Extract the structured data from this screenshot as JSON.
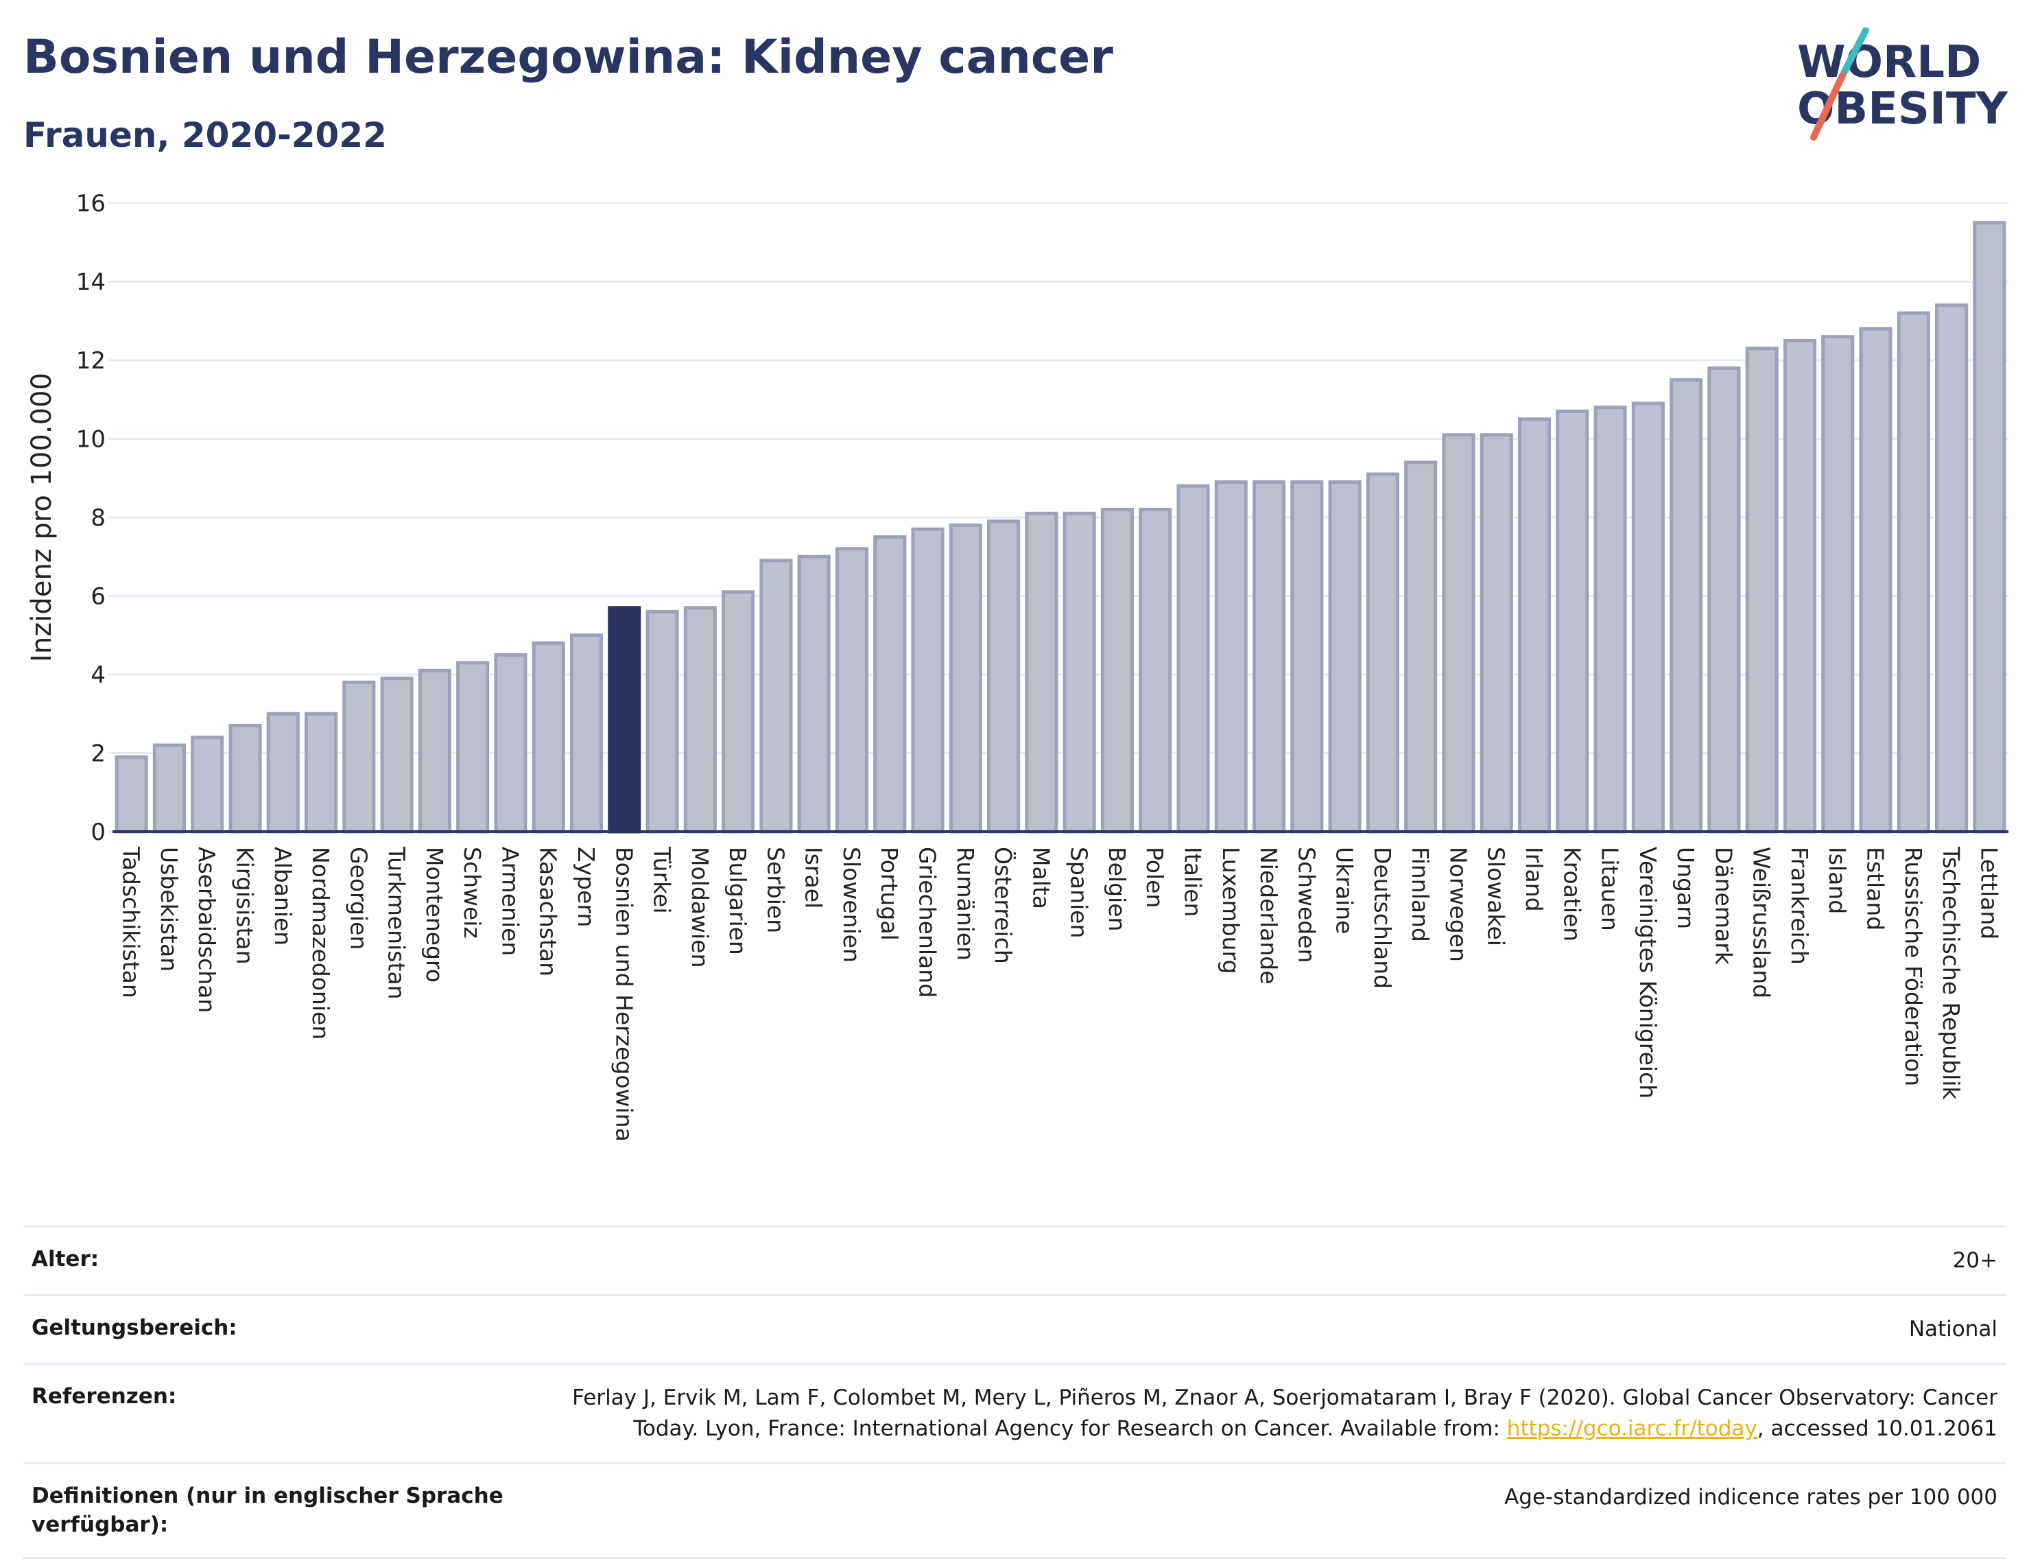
{
  "header": {
    "title": "Bosnien und Herzegowina: Kidney cancer",
    "subtitle": "Frauen, 2020-2022"
  },
  "logo": {
    "line1": "WORLD",
    "line2": "OBESITY"
  },
  "colors": {
    "highlight": "#2b3561",
    "bar": "#bcc0ce",
    "bar_stroke": "#9ea2b8",
    "title": "#2b3561",
    "link": "#e8b21a"
  },
  "chart_data": {
    "type": "bar",
    "ylabel": "Inzidenz pro 100.000",
    "ylim": [
      0,
      16
    ],
    "yticks": [
      0,
      2,
      4,
      6,
      8,
      10,
      12,
      14,
      16
    ],
    "grid": true,
    "highlight": "Bosnien und Herzegowina",
    "categories": [
      "Tadschikistan",
      "Usbekistan",
      "Aserbaidschan",
      "Kirgisistan",
      "Albanien",
      "Nordmazedonien",
      "Georgien",
      "Turkmenistan",
      "Montenegro",
      "Schweiz",
      "Armenien",
      "Kasachstan",
      "Zypern",
      "Bosnien und Herzegowina",
      "Türkei",
      "Moldawien",
      "Bulgarien",
      "Serbien",
      "Israel",
      "Slowenien",
      "Portugal",
      "Griechenland",
      "Rumänien",
      "Österreich",
      "Malta",
      "Spanien",
      "Belgien",
      "Polen",
      "Italien",
      "Luxemburg",
      "Niederlande",
      "Schweden",
      "Ukraine",
      "Deutschland",
      "Finnland",
      "Norwegen",
      "Slowakei",
      "Irland",
      "Kroatien",
      "Litauen",
      "Vereinigtes Königreich",
      "Ungarn",
      "Dänemark",
      "Weißrussland",
      "Frankreich",
      "Island",
      "Estland",
      "Russische Föderation",
      "Tschechische Republik",
      "Lettland"
    ],
    "values": [
      1.9,
      2.2,
      2.4,
      2.7,
      3.0,
      3.0,
      3.8,
      3.9,
      4.1,
      4.3,
      4.5,
      4.8,
      5.0,
      5.7,
      5.6,
      5.7,
      6.1,
      6.9,
      7.0,
      7.2,
      7.5,
      7.7,
      7.8,
      7.9,
      8.1,
      8.1,
      8.2,
      8.2,
      8.8,
      8.9,
      8.9,
      8.9,
      8.9,
      9.1,
      9.4,
      10.1,
      10.1,
      10.5,
      10.7,
      10.8,
      10.9,
      11.5,
      11.8,
      12.3,
      12.5,
      12.6,
      12.8,
      13.2,
      13.4,
      15.5
    ]
  },
  "meta": {
    "age_label": "Alter:",
    "age_value": "20+",
    "scope_label": "Geltungsbereich:",
    "scope_value": "National",
    "ref_label": "Referenzen:",
    "ref_text_1": "Ferlay J, Ervik M, Lam F, Colombet M, Mery L, Piñeros M, Znaor A, Soerjomataram I, Bray F (2020). Global Cancer Observatory: Cancer Today. Lyon, France: International Agency for Research on Cancer. Available from: ",
    "ref_link": "https://gco.iarc.fr/today",
    "ref_text_2": ", accessed 10.01.2061",
    "def_label": "Definitionen (nur in englischer Sprache verfügbar):",
    "def_value": "Age-standardized indicence rates per 100 000"
  }
}
